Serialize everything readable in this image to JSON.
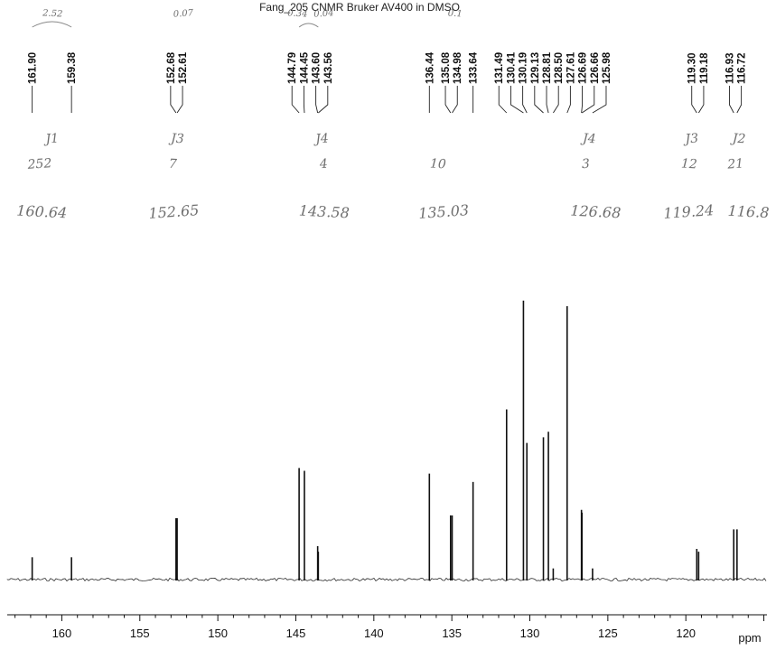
{
  "title": "Fang_205 CNMR Bruker AV400 in DMSO",
  "chart_data": {
    "type": "line",
    "title": "Fang_205 CNMR Bruker AV400 in DMSO",
    "xlabel": "ppm",
    "ylabel": "",
    "xlim": [
      163.5,
      114.8
    ],
    "x_reversed": true,
    "grid": false,
    "x_ticks": [
      160,
      155,
      150,
      145,
      140,
      135,
      130,
      125,
      120
    ],
    "peak_labels": [
      "161.90",
      "159.38",
      "152.68",
      "152.61",
      "144.79",
      "144.45",
      "143.60",
      "143.56",
      "136.44",
      "135.08",
      "134.98",
      "133.64",
      "131.49",
      "130.41",
      "130.19",
      "129.13",
      "128.81",
      "128.50",
      "127.61",
      "126.69",
      "126.66",
      "125.98",
      "119.30",
      "119.18",
      "116.93",
      "116.72"
    ],
    "peaks": [
      {
        "x": 161.9,
        "h": 0.08
      },
      {
        "x": 159.38,
        "h": 0.08
      },
      {
        "x": 152.68,
        "h": 0.22
      },
      {
        "x": 152.61,
        "h": 0.22
      },
      {
        "x": 144.79,
        "h": 0.4
      },
      {
        "x": 144.45,
        "h": 0.39
      },
      {
        "x": 143.6,
        "h": 0.12
      },
      {
        "x": 143.56,
        "h": 0.1
      },
      {
        "x": 136.44,
        "h": 0.38
      },
      {
        "x": 135.08,
        "h": 0.23
      },
      {
        "x": 134.98,
        "h": 0.23
      },
      {
        "x": 133.64,
        "h": 0.35
      },
      {
        "x": 131.49,
        "h": 0.61
      },
      {
        "x": 130.41,
        "h": 1.0
      },
      {
        "x": 130.19,
        "h": 0.49
      },
      {
        "x": 129.13,
        "h": 0.51
      },
      {
        "x": 128.81,
        "h": 0.53
      },
      {
        "x": 128.5,
        "h": 0.04
      },
      {
        "x": 127.61,
        "h": 0.98
      },
      {
        "x": 126.69,
        "h": 0.25
      },
      {
        "x": 126.66,
        "h": 0.24
      },
      {
        "x": 125.98,
        "h": 0.04
      },
      {
        "x": 119.3,
        "h": 0.11
      },
      {
        "x": 119.18,
        "h": 0.1
      },
      {
        "x": 116.93,
        "h": 0.18
      },
      {
        "x": 116.72,
        "h": 0.18
      }
    ],
    "annotations": [
      {
        "text": "2.52",
        "ppm": 160.6,
        "row": "top"
      },
      {
        "text": "0.07",
        "ppm": 152.2,
        "row": "top"
      },
      {
        "text": "0.34",
        "ppm": 144.9,
        "row": "top"
      },
      {
        "text": "0.04",
        "ppm": 143.2,
        "row": "top"
      },
      {
        "text": "0.1",
        "ppm": 134.8,
        "row": "top"
      },
      {
        "text": "J1",
        "ppm": 160.6,
        "row": "j"
      },
      {
        "text": "J3",
        "ppm": 152.6,
        "row": "j"
      },
      {
        "text": "J4",
        "ppm": 143.3,
        "row": "j"
      },
      {
        "text": "J4",
        "ppm": 126.2,
        "row": "j"
      },
      {
        "text": "J3",
        "ppm": 119.6,
        "row": "j"
      },
      {
        "text": "J2",
        "ppm": 116.6,
        "row": "j"
      },
      {
        "text": "252",
        "ppm": 161.4,
        "row": "hz"
      },
      {
        "text": "7",
        "ppm": 152.9,
        "row": "hz"
      },
      {
        "text": "4",
        "ppm": 143.2,
        "row": "hz"
      },
      {
        "text": "10",
        "ppm": 135.9,
        "row": "hz"
      },
      {
        "text": "3",
        "ppm": 126.4,
        "row": "hz"
      },
      {
        "text": "12",
        "ppm": 119.8,
        "row": "hz"
      },
      {
        "text": "21",
        "ppm": 116.8,
        "row": "hz"
      },
      {
        "text": "160.64",
        "ppm": 161.3,
        "row": "center"
      },
      {
        "text": "152.65",
        "ppm": 152.8,
        "row": "center"
      },
      {
        "text": "143.58",
        "ppm": 143.2,
        "row": "center"
      },
      {
        "text": "135.03",
        "ppm": 135.5,
        "row": "center"
      },
      {
        "text": "126.68",
        "ppm": 125.8,
        "row": "center"
      },
      {
        "text": "119.24",
        "ppm": 119.8,
        "row": "center"
      },
      {
        "text": "116.8",
        "ppm": 116.0,
        "row": "center"
      }
    ]
  }
}
